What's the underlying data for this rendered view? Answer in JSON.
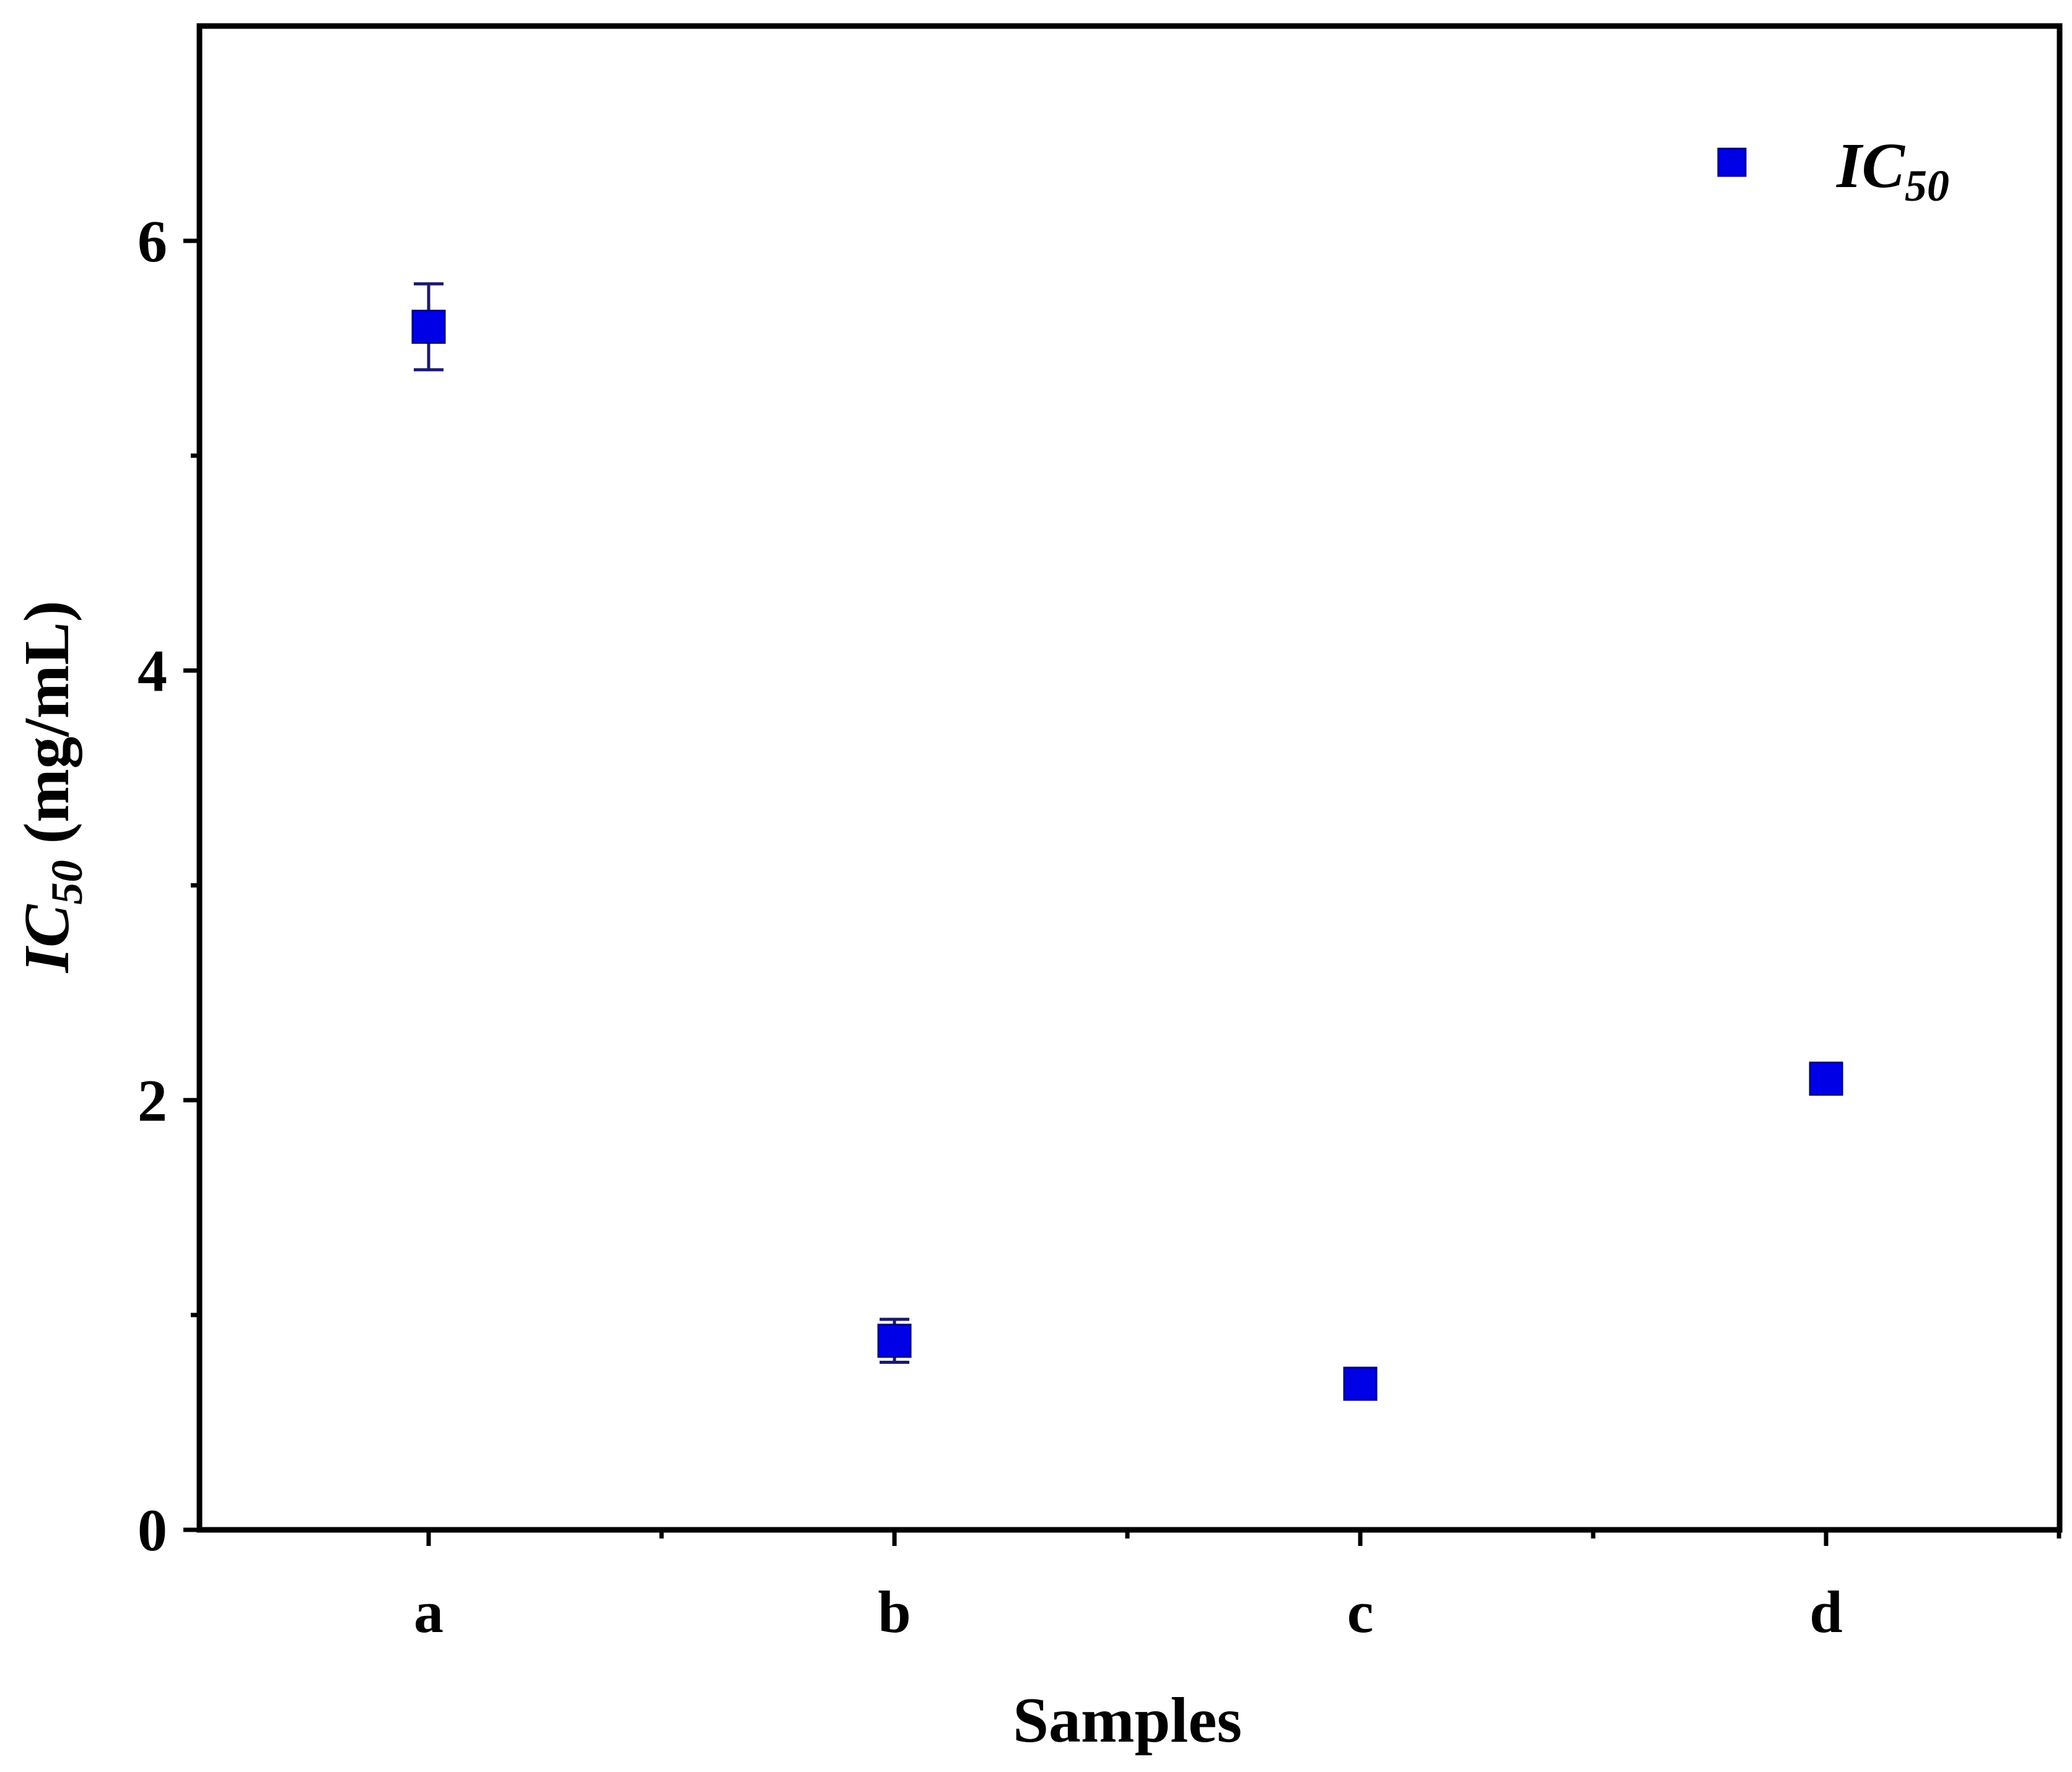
{
  "chart_data": {
    "type": "scatter",
    "title": "",
    "xlabel": "Samples",
    "ylabel": {
      "main": "IC",
      "sub": "50",
      "unit": " (mg/mL)"
    },
    "categories": [
      "a",
      "b",
      "c",
      "d"
    ],
    "ylim": [
      0,
      7
    ],
    "yticks": [
      0,
      2,
      4,
      6
    ],
    "ytick_labels": [
      "0",
      "2",
      "4",
      "6"
    ],
    "grid": false,
    "legend_position": "top-right",
    "series": [
      {
        "name": {
          "main": "IC",
          "sub": "50"
        },
        "color": "#0000e6",
        "marker": "square",
        "values": [
          5.6,
          0.88,
          0.68,
          2.1
        ],
        "errors": [
          0.2,
          0.1,
          0.0,
          0.0
        ]
      }
    ]
  }
}
